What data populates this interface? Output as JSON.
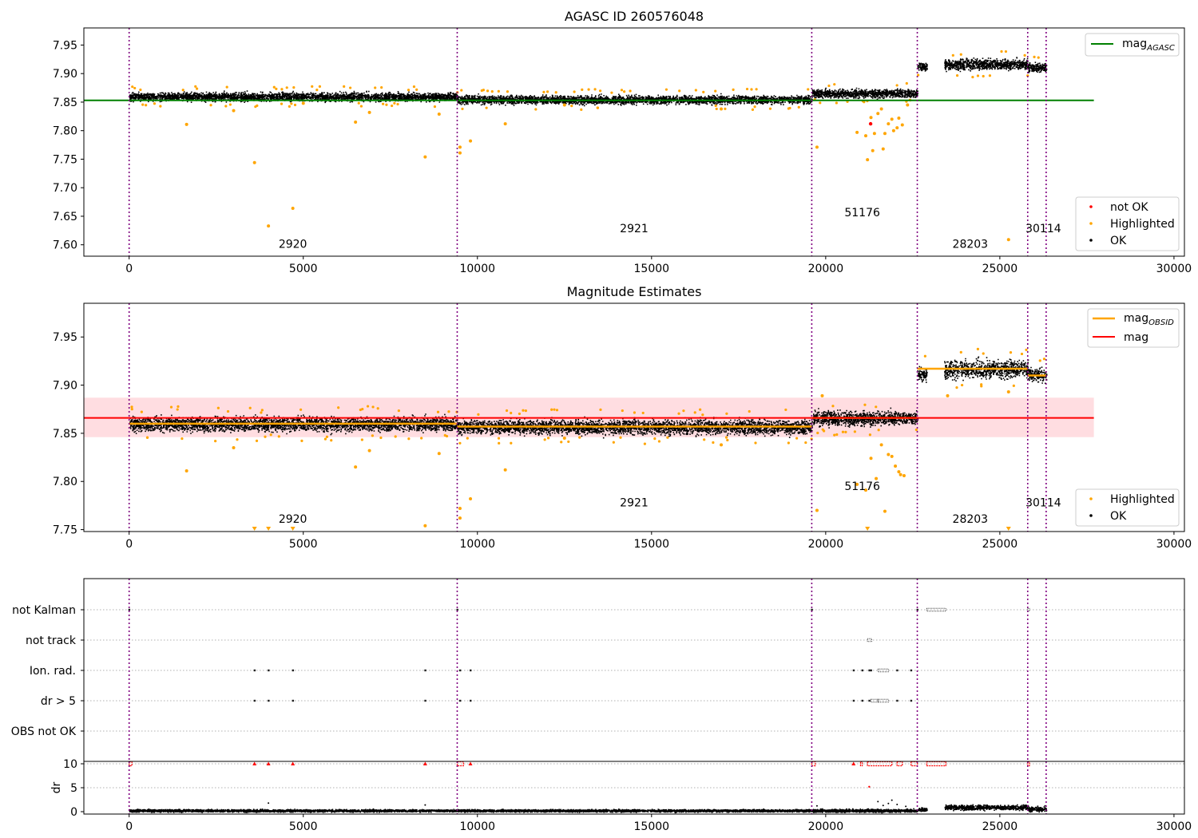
{
  "chart_data": [
    {
      "type": "scatter",
      "title": "AGASC ID 260576048",
      "xlim": [
        -1300,
        30300
      ],
      "ylim": [
        7.58,
        7.98
      ],
      "xticks": [
        0,
        5000,
        10000,
        15000,
        20000,
        25000,
        30000
      ],
      "yticks": [
        7.6,
        7.65,
        7.7,
        7.75,
        7.8,
        7.85,
        7.9,
        7.95
      ],
      "ytick_decimals": 2,
      "obsid_boundaries": [
        0,
        9420,
        19600,
        22630,
        25800,
        26330
      ],
      "obsid_labels": [
        {
          "text": "2920",
          "x": 4700,
          "y": 7.595
        },
        {
          "text": "2921",
          "x": 14500,
          "y": 7.622
        },
        {
          "text": "51176",
          "x": 21050,
          "y": 7.65
        },
        {
          "text": "28203",
          "x": 24150,
          "y": 7.595
        },
        {
          "text": "30114",
          "x": 26250,
          "y": 7.622
        }
      ],
      "bands": [
        {
          "x0": 0,
          "x1": 9420,
          "center": 7.86,
          "spread": 0.007
        },
        {
          "x0": 9420,
          "x1": 19600,
          "center": 7.855,
          "spread": 0.007
        },
        {
          "x0": 19600,
          "x1": 22630,
          "center": 7.866,
          "spread": 0.007
        },
        {
          "x0": 22630,
          "x1": 22900,
          "center": 7.912,
          "spread": 0.007
        },
        {
          "x0": 23400,
          "x1": 25800,
          "center": 7.917,
          "spread": 0.009
        },
        {
          "x0": 25800,
          "x1": 26330,
          "center": 7.911,
          "spread": 0.007
        }
      ],
      "series": [
        {
          "name": "mag$_{AGASC}$",
          "kind": "hline",
          "y": 7.853,
          "x": [
            -1300,
            27700
          ],
          "color": "#008000",
          "legend": "mag",
          "legend_sub": "AGASC"
        }
      ],
      "highlighted_points": [
        [
          1650,
          7.811
        ],
        [
          3600,
          7.744
        ],
        [
          4000,
          7.633
        ],
        [
          4700,
          7.664
        ],
        [
          8500,
          7.754
        ],
        [
          8900,
          7.829
        ],
        [
          9500,
          7.761
        ],
        [
          9500,
          7.771
        ],
        [
          9800,
          7.782
        ],
        [
          10800,
          7.812
        ],
        [
          19750,
          7.771
        ],
        [
          20900,
          7.797
        ],
        [
          21150,
          7.791
        ],
        [
          21200,
          7.749
        ],
        [
          21350,
          7.765
        ],
        [
          21400,
          7.795
        ],
        [
          21500,
          7.83
        ],
        [
          21650,
          7.768
        ],
        [
          21700,
          7.795
        ],
        [
          21800,
          7.812
        ],
        [
          21900,
          7.82
        ],
        [
          21950,
          7.8
        ],
        [
          22050,
          7.805
        ],
        [
          22100,
          7.822
        ],
        [
          22200,
          7.81
        ],
        [
          21300,
          7.823
        ],
        [
          21600,
          7.838
        ],
        [
          22350,
          7.845
        ],
        [
          25250,
          7.609
        ],
        [
          3000,
          7.835
        ],
        [
          5000,
          7.848
        ],
        [
          6500,
          7.815
        ],
        [
          6900,
          7.832
        ],
        [
          12500,
          7.845
        ],
        [
          17000,
          7.838
        ]
      ],
      "notok_points": [
        [
          21290,
          7.812
        ]
      ],
      "legend_markers": [
        {
          "label": "not OK",
          "color": "#ff0000"
        },
        {
          "label": "Highlighted",
          "color": "#ffa500"
        },
        {
          "label": "OK",
          "color": "#000000"
        }
      ]
    },
    {
      "type": "scatter",
      "title": "Magnitude Estimates",
      "xlim": [
        -1300,
        30300
      ],
      "ylim": [
        7.748,
        7.985
      ],
      "xticks": [
        0,
        5000,
        10000,
        15000,
        20000,
        25000,
        30000
      ],
      "yticks": [
        7.75,
        7.8,
        7.85,
        7.9,
        7.95
      ],
      "ytick_decimals": 2,
      "obsid_boundaries": [
        0,
        9420,
        19600,
        22630,
        25800,
        26330
      ],
      "obsid_labels": [
        {
          "text": "2920",
          "x": 4700,
          "y": 7.757
        },
        {
          "text": "2921",
          "x": 14500,
          "y": 7.774
        },
        {
          "text": "51176",
          "x": 21050,
          "y": 7.791
        },
        {
          "text": "28203",
          "x": 24150,
          "y": 7.757
        },
        {
          "text": "30114",
          "x": 26250,
          "y": 7.774
        }
      ],
      "bands": [
        {
          "x0": 0,
          "x1": 9420,
          "center": 7.86,
          "spread": 0.007
        },
        {
          "x0": 9420,
          "x1": 19600,
          "center": 7.857,
          "spread": 0.007
        },
        {
          "x0": 19600,
          "x1": 22630,
          "center": 7.866,
          "spread": 0.007
        },
        {
          "x0": 22630,
          "x1": 22900,
          "center": 7.912,
          "spread": 0.007
        },
        {
          "x0": 23400,
          "x1": 25800,
          "center": 7.917,
          "spread": 0.009
        },
        {
          "x0": 25800,
          "x1": 26330,
          "center": 7.911,
          "spread": 0.007
        }
      ],
      "mag_band": {
        "y0": 7.846,
        "y1": 7.887,
        "x0": -1300,
        "x1": 27700,
        "color": "#ffdde1"
      },
      "mag_line": {
        "y": 7.866,
        "x0": -1300,
        "x1": 27700,
        "color": "#ff0000",
        "label": "mag"
      },
      "obsid_lines": [
        {
          "x0": 0,
          "x1": 9420,
          "y": 7.86
        },
        {
          "x0": 9420,
          "x1": 19600,
          "y": 7.857
        },
        {
          "x0": 19600,
          "x1": 22630,
          "y": 7.866
        },
        {
          "x0": 22630,
          "x1": 25800,
          "y": 7.917
        },
        {
          "x0": 25800,
          "x1": 26330,
          "y": 7.91
        }
      ],
      "obsid_line_color": "#ffa500",
      "obsid_legend": "mag",
      "obsid_legend_sub": "OBSID",
      "highlighted_points": [
        [
          1650,
          7.811
        ],
        [
          3000,
          7.835
        ],
        [
          6500,
          7.815
        ],
        [
          6900,
          7.832
        ],
        [
          8900,
          7.829
        ],
        [
          9500,
          7.772
        ],
        [
          9800,
          7.782
        ],
        [
          10800,
          7.812
        ],
        [
          19750,
          7.77
        ],
        [
          20900,
          7.797
        ],
        [
          21150,
          7.791
        ],
        [
          21300,
          7.824
        ],
        [
          21450,
          7.803
        ],
        [
          21600,
          7.838
        ],
        [
          21700,
          7.769
        ],
        [
          21800,
          7.828
        ],
        [
          21900,
          7.826
        ],
        [
          22000,
          7.816
        ],
        [
          22100,
          7.81
        ],
        [
          22150,
          7.807
        ],
        [
          22250,
          7.806
        ],
        [
          8500,
          7.754
        ],
        [
          9500,
          7.762
        ],
        [
          12500,
          7.845
        ],
        [
          17000,
          7.838
        ],
        [
          25250,
          7.893
        ],
        [
          19900,
          7.889
        ],
        [
          23500,
          7.889
        ]
      ],
      "clipped_points": [
        3600,
        4000,
        4700,
        21200,
        25250
      ],
      "legend_markers": [
        {
          "label": "Highlighted",
          "color": "#ffa500"
        },
        {
          "label": "OK",
          "color": "#000000"
        }
      ]
    },
    {
      "type": "scatter",
      "title": "",
      "categories": [
        "not Kalman",
        "not track",
        "Ion. rad.",
        "dr > 5",
        "OBS not OK"
      ],
      "xlim": [
        -1300,
        30300
      ],
      "xticks": [
        0,
        5000,
        10000,
        15000,
        20000,
        25000,
        30000
      ],
      "obsid_boundaries": [
        0,
        9420,
        19600,
        22630,
        25800,
        26330
      ],
      "flag_points": {
        "not Kalman": [
          [
            0,
            20
          ],
          [
            9420,
            20
          ],
          [
            19600,
            20
          ],
          [
            22630,
            20
          ],
          [
            22900,
            23450
          ],
          [
            25800,
            25850
          ]
        ],
        "not track": [
          [
            21200,
            21320
          ]
        ],
        "Ion. rad.": [
          [
            3600,
            3600
          ],
          [
            4000,
            4000
          ],
          [
            4700,
            4700
          ],
          [
            8500,
            8500
          ],
          [
            9500,
            9500
          ],
          [
            9800,
            9800
          ],
          [
            20800,
            20800
          ],
          [
            21050,
            21050
          ],
          [
            21250,
            21250
          ],
          [
            21300,
            21300
          ],
          [
            21500,
            21800
          ],
          [
            22050,
            22050
          ],
          [
            22450,
            22450
          ]
        ],
        "dr > 5": [
          [
            3600,
            3600
          ],
          [
            4000,
            4000
          ],
          [
            4700,
            4700
          ],
          [
            8500,
            8500
          ],
          [
            9500,
            9500
          ],
          [
            9800,
            9800
          ],
          [
            20800,
            20800
          ],
          [
            21050,
            21050
          ],
          [
            21250,
            21250
          ],
          [
            21300,
            21500
          ],
          [
            21500,
            21800
          ],
          [
            22050,
            22050
          ],
          [
            22450,
            22450
          ]
        ],
        "OBS not OK": []
      }
    },
    {
      "type": "scatter",
      "title": "",
      "ylabel": "dr",
      "xlim": [
        -1300,
        30300
      ],
      "ylim": [
        -0.5,
        10.5
      ],
      "xticks": [
        0,
        5000,
        10000,
        15000,
        20000,
        25000,
        30000
      ],
      "yticks": [
        0,
        5,
        10
      ],
      "ytick_decimals": 0,
      "obsid_boundaries": [
        0,
        9420,
        19600,
        22630,
        25800,
        26330
      ],
      "bands": [
        {
          "x0": 0,
          "x1": 9420,
          "center": 0.3,
          "spread": 0.25
        },
        {
          "x0": 9420,
          "x1": 19600,
          "center": 0.3,
          "spread": 0.25
        },
        {
          "x0": 19600,
          "x1": 22630,
          "center": 0.3,
          "spread": 0.3
        },
        {
          "x0": 22630,
          "x1": 22900,
          "center": 0.6,
          "spread": 0.4
        },
        {
          "x0": 23400,
          "x1": 25800,
          "center": 1.0,
          "spread": 0.5
        },
        {
          "x0": 25800,
          "x1": 26330,
          "center": 0.6,
          "spread": 0.5
        }
      ],
      "clipped_ranges": [
        [
          0,
          80
        ],
        [
          3600,
          3600
        ],
        [
          4000,
          4000
        ],
        [
          4700,
          4700
        ],
        [
          8500,
          8500
        ],
        [
          9420,
          9600
        ],
        [
          9800,
          9800
        ],
        [
          19600,
          19700
        ],
        [
          20800,
          20800
        ],
        [
          21000,
          21050
        ],
        [
          21200,
          21900
        ],
        [
          22050,
          22200
        ],
        [
          22450,
          22630
        ],
        [
          22900,
          23450
        ],
        [
          25800,
          25850
        ]
      ],
      "scattered_points": [
        [
          4000,
          1.8
        ],
        [
          8500,
          1.4
        ],
        [
          21250,
          5.2
        ],
        [
          21500,
          2.1
        ],
        [
          21650,
          1.3
        ],
        [
          21800,
          1.7
        ],
        [
          21900,
          2.4
        ],
        [
          22050,
          1.5
        ],
        [
          19750,
          1.2
        ],
        [
          22300,
          1.1
        ]
      ]
    }
  ]
}
